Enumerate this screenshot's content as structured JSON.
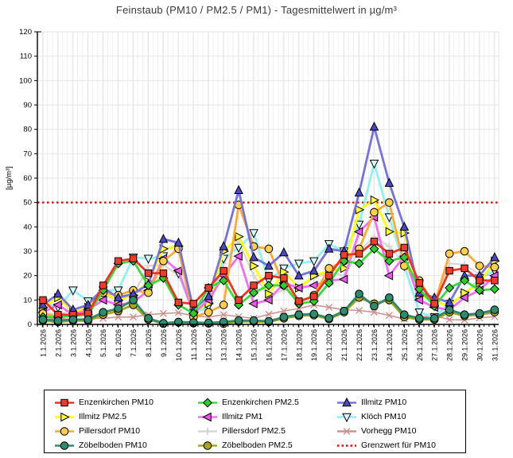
{
  "title": "Feinstaub (PM10 / PM2.5 / PM1) -  Tagesmittelwert in µg/m³",
  "chart_data": {
    "type": "line",
    "title": "Feinstaub (PM10 / PM2.5 / PM1) -  Tagesmittelwert in µg/m³",
    "xlabel": "",
    "ylabel": "[µg/m³]",
    "ylim": [
      0,
      120
    ],
    "ytick_step": 10,
    "grid": true,
    "legend_position": "bottom",
    "x": [
      "1.1.2026",
      "2.1.2026",
      "3.1.2026",
      "4.1.2026",
      "5.1.2026",
      "6.1.2026",
      "7.1.2026",
      "8.1.2026",
      "9.1.2026",
      "10.1.2026",
      "11.1.2026",
      "12.1.2026",
      "13.1.2026",
      "14.1.2026",
      "15.1.2026",
      "16.1.2026",
      "17.1.2026",
      "18.1.2026",
      "19.1.2026",
      "20.1.2026",
      "21.1.2026",
      "22.1.2026",
      "23.1.2026",
      "24.1.2026",
      "25.1.2026",
      "26.1.2026",
      "27.1.2026",
      "28.1.2026",
      "29.1.2026",
      "30.1.2026",
      "31.1.2026"
    ],
    "series": [
      {
        "name": "Enzenkirchen PM10",
        "marker": "square",
        "line_color": "#ee3224",
        "fill_color": "#f23b2b",
        "z": 8,
        "values": [
          10,
          4,
          4,
          4.5,
          16,
          26,
          27,
          21,
          21,
          9,
          8.5,
          15,
          22,
          10,
          16,
          20,
          19,
          9.5,
          11.5,
          20,
          28.5,
          29,
          34,
          29,
          31.5,
          17,
          8.5,
          22,
          23,
          18,
          18
        ]
      },
      {
        "name": "Enzenkirchen PM2.5",
        "marker": "diamond",
        "line_color": "#3ada3a",
        "fill_color": "#2ecc2e",
        "z": 7,
        "values": [
          3,
          3,
          3.5,
          4,
          14,
          25,
          26,
          16,
          19,
          8,
          4.5,
          15,
          18,
          8,
          13,
          16,
          16,
          8.5,
          9.5,
          17,
          26,
          25,
          31,
          26,
          27.5,
          14.5,
          7.5,
          15,
          18,
          14,
          14.5
        ]
      },
      {
        "name": "Illmitz PM10",
        "marker": "triangle_up",
        "line_color": "#7672e0",
        "fill_color": "#4b47c0",
        "z": 6,
        "values": [
          8,
          12.5,
          6,
          8,
          15,
          11,
          12.5,
          16.5,
          35,
          33.5,
          6,
          11.5,
          32,
          55,
          27.5,
          24,
          29.5,
          20,
          22,
          31,
          30,
          54,
          81,
          58,
          40,
          13,
          11,
          9,
          20,
          20,
          27.5
        ]
      },
      {
        "name": "Illmitz PM2.5",
        "marker": "triangle_right",
        "line_color": "#ffff00",
        "fill_color": "#ffff2e",
        "z": 3,
        "values": [
          7,
          11,
          5,
          7,
          13,
          10,
          12,
          17.5,
          31,
          32,
          5,
          8.5,
          30,
          36,
          24,
          12.5,
          21.5,
          15,
          20,
          22,
          23,
          47,
          51,
          38,
          37.5,
          12,
          9.5,
          7.5,
          13,
          17,
          26
        ]
      },
      {
        "name": "Illmitz PM1",
        "marker": "triangle_left",
        "line_color": "#f46ef4",
        "fill_color": "#ee55ee",
        "z": 4,
        "values": [
          5,
          8,
          4,
          6,
          10,
          8,
          9,
          14,
          27,
          22,
          4.5,
          10,
          20,
          28,
          8.5,
          10,
          17,
          15,
          16,
          18,
          18.5,
          38,
          44,
          20,
          28,
          10,
          7,
          6,
          11,
          14,
          20
        ]
      },
      {
        "name": "Klöch PM10",
        "marker": "triangle_down",
        "line_color": "#8ff2f2",
        "fill_color": "#d8fbfb",
        "z": 2,
        "values": [
          9,
          7,
          14,
          9.5,
          14,
          14,
          27.5,
          27,
          28,
          21,
          4.5,
          7.5,
          27,
          31.5,
          37.5,
          18,
          23,
          25,
          26,
          33,
          30,
          41,
          66,
          44,
          24,
          5,
          3,
          8.5,
          12,
          19,
          22
        ]
      },
      {
        "name": "Pillersdorf PM10",
        "marker": "circle",
        "line_color": "#ffaa33",
        "fill_color": "#ffd04a",
        "z": 5,
        "values": [
          4.5,
          3,
          3.5,
          5,
          13,
          12,
          14,
          13,
          26,
          31,
          3,
          5,
          8,
          49,
          32,
          31,
          16,
          9,
          12,
          23,
          26,
          31,
          46,
          50,
          24,
          18,
          8,
          29,
          30,
          24,
          23.5
        ]
      },
      {
        "name": "Pillersdorf PM2.5",
        "marker": "plus",
        "line_color": "#d6d6d6",
        "fill_color": "#d6d6d6",
        "z": 0,
        "values": [
          5,
          4,
          6,
          7,
          12,
          10,
          12,
          24,
          24.5,
          20,
          6,
          6,
          25,
          34,
          20,
          12,
          14,
          15,
          19,
          21.5,
          20,
          30,
          36,
          32,
          25,
          16,
          8,
          25,
          24.5,
          20.5,
          20
        ]
      },
      {
        "name": "Vorhegg PM10",
        "marker": "x_mark",
        "line_color": "#cd9090",
        "fill_color": "#cd9090",
        "z": 1,
        "values": [
          2,
          2.5,
          2,
          2.4,
          2.5,
          3,
          3,
          4,
          4.5,
          4.8,
          3.5,
          3,
          4,
          3.2,
          2.5,
          4.2,
          5.5,
          6.5,
          8,
          7,
          6,
          5.7,
          5,
          3.7,
          2.2,
          3,
          3.5,
          2,
          1.8,
          2.7,
          3.2
        ]
      },
      {
        "name": "Zöbelboden PM10",
        "marker": "circle",
        "line_color": "#2e8b6e",
        "fill_color": "#2e8b6e",
        "z": 10,
        "values": [
          2,
          1.5,
          2,
          2,
          5,
          6.5,
          10,
          2.5,
          0.5,
          1,
          0.8,
          0.6,
          1,
          1.6,
          1.6,
          1.3,
          3,
          4,
          4.3,
          2.6,
          5.5,
          12.5,
          7.5,
          11,
          4,
          2.5,
          2.5,
          6,
          4,
          4.5,
          6
        ]
      },
      {
        "name": "Zöbelboden PM2.5",
        "marker": "circle",
        "line_color": "#a8a816",
        "fill_color": "#a8a816",
        "z": 9,
        "values": [
          1.5,
          1,
          1.5,
          1.5,
          4,
          5.5,
          8,
          2,
          0.3,
          0.8,
          0.5,
          0.4,
          0.3,
          1.2,
          1.2,
          1,
          2.5,
          3.5,
          3.8,
          2.2,
          5,
          11,
          8.5,
          10,
          3,
          2,
          2,
          5,
          3.5,
          4,
          5
        ]
      }
    ],
    "reference_line": {
      "name": "Grenzwert für PM10",
      "value": 50,
      "color": "#ff0000",
      "style": "dotted"
    }
  }
}
